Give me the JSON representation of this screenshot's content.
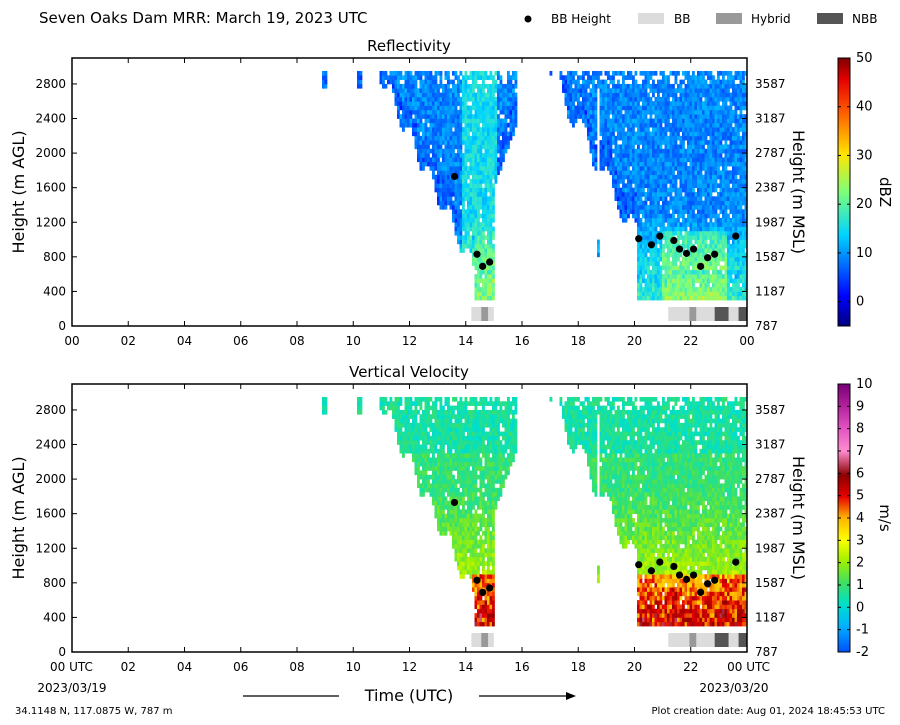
{
  "page": {
    "title": "Seven Oaks Dam MRR:  March 19, 2023 UTC",
    "location": "34.1148 N, 117.0875 W, 787 m",
    "creation": "Plot creation date: Aug 01, 2024 18:45:53 UTC",
    "xlabel": "Time (UTC)",
    "date_start": "2023/03/19",
    "date_end": "2023/03/20"
  },
  "legend": [
    {
      "label": "BB Height",
      "kind": "dot",
      "color": "#000000"
    },
    {
      "label": "BB",
      "kind": "box",
      "color": "#dcdcdc"
    },
    {
      "label": "Hybrid",
      "kind": "box",
      "color": "#999999"
    },
    {
      "label": "NBB",
      "kind": "box",
      "color": "#555555"
    }
  ],
  "chart_data": [
    {
      "type": "heatmap",
      "title": "Reflectivity",
      "ylabel": "Height (m AGL)",
      "ylabel_right": "Height (m MSL)",
      "colorbar_label": "dBZ",
      "colormap": "jet",
      "xlim": [
        0,
        24
      ],
      "ylim": [
        0,
        3100
      ],
      "xticks": [
        "00",
        "02",
        "04",
        "06",
        "08",
        "10",
        "12",
        "14",
        "16",
        "18",
        "20",
        "22",
        "00"
      ],
      "yticks": [
        0,
        400,
        800,
        1200,
        1600,
        2000,
        2400,
        2800
      ],
      "yticks_right": [
        "787",
        "1187",
        "1587",
        "1987",
        "2387",
        "2787",
        "3187",
        "3587"
      ],
      "colorbar_range": [
        -5,
        50
      ],
      "colorbar_ticks": [
        "0",
        "10",
        "20",
        "30",
        "40",
        "50"
      ],
      "bb_height": [
        {
          "t": 13.6,
          "h": 1730
        },
        {
          "t": 14.4,
          "h": 830
        },
        {
          "t": 14.6,
          "h": 690
        },
        {
          "t": 14.85,
          "h": 740
        },
        {
          "t": 20.15,
          "h": 1010
        },
        {
          "t": 20.6,
          "h": 940
        },
        {
          "t": 20.9,
          "h": 1040
        },
        {
          "t": 21.4,
          "h": 990
        },
        {
          "t": 21.6,
          "h": 890
        },
        {
          "t": 21.85,
          "h": 840
        },
        {
          "t": 22.1,
          "h": 890
        },
        {
          "t": 22.35,
          "h": 690
        },
        {
          "t": 22.6,
          "h": 790
        },
        {
          "t": 22.85,
          "h": 830
        },
        {
          "t": 23.6,
          "h": 1040
        }
      ]
    },
    {
      "type": "heatmap",
      "title": "Vertical Velocity",
      "ylabel": "Height (m AGL)",
      "ylabel_right": "Height (m MSL)",
      "colorbar_label": "m/s",
      "colormap": "velocity",
      "xlim": [
        0,
        24
      ],
      "ylim": [
        0,
        3100
      ],
      "xticks": [
        "00 UTC",
        "02",
        "04",
        "06",
        "08",
        "10",
        "12",
        "14",
        "16",
        "18",
        "20",
        "22",
        "00 UTC"
      ],
      "yticks": [
        0,
        400,
        800,
        1200,
        1600,
        2000,
        2400,
        2800
      ],
      "yticks_right": [
        "787",
        "1187",
        "1587",
        "1987",
        "2387",
        "2787",
        "3187",
        "3587"
      ],
      "colorbar_range": [
        -2,
        10
      ],
      "colorbar_ticks": [
        "-2",
        "-1",
        "0",
        "1",
        "2",
        "3",
        "4",
        "5",
        "6",
        "7",
        "8",
        "9",
        "10"
      ],
      "bb_height": [
        {
          "t": 13.6,
          "h": 1730
        },
        {
          "t": 14.4,
          "h": 830
        },
        {
          "t": 14.6,
          "h": 690
        },
        {
          "t": 14.85,
          "h": 740
        },
        {
          "t": 20.15,
          "h": 1010
        },
        {
          "t": 20.6,
          "h": 940
        },
        {
          "t": 20.9,
          "h": 1040
        },
        {
          "t": 21.4,
          "h": 990
        },
        {
          "t": 21.6,
          "h": 890
        },
        {
          "t": 21.85,
          "h": 840
        },
        {
          "t": 22.1,
          "h": 890
        },
        {
          "t": 22.35,
          "h": 690
        },
        {
          "t": 22.6,
          "h": 790
        },
        {
          "t": 22.85,
          "h": 830
        },
        {
          "t": 23.6,
          "h": 1040
        }
      ]
    }
  ],
  "bb_type_bar": [
    {
      "t0": 14.2,
      "t1": 14.55,
      "type": "BB"
    },
    {
      "t0": 14.55,
      "t1": 14.8,
      "type": "Hybrid"
    },
    {
      "t0": 14.8,
      "t1": 15.0,
      "type": "BB"
    },
    {
      "t0": 21.2,
      "t1": 21.95,
      "type": "BB"
    },
    {
      "t0": 21.95,
      "t1": 22.2,
      "type": "Hybrid"
    },
    {
      "t0": 22.2,
      "t1": 22.85,
      "type": "BB"
    },
    {
      "t0": 22.85,
      "t1": 23.35,
      "type": "NBB"
    },
    {
      "t0": 23.35,
      "t1": 23.7,
      "type": "BB"
    },
    {
      "t0": 23.7,
      "t1": 24.0,
      "type": "NBB"
    }
  ]
}
